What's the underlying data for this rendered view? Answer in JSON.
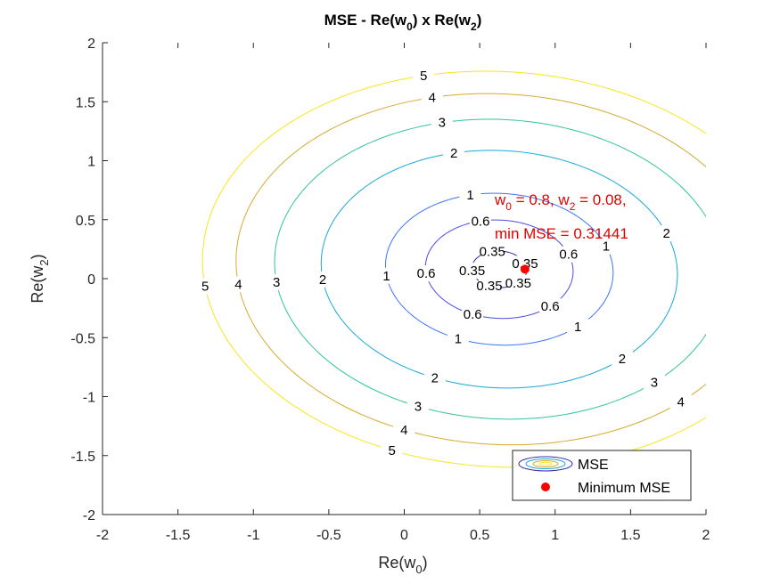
{
  "chart_data": {
    "type": "contour",
    "title_parts": {
      "prefix": "MSE - Re(w",
      "sub1": "0",
      "mid": ") x Re(w",
      "sub2": "2",
      "suffix": ")"
    },
    "xlabel_parts": {
      "prefix": "Re(w",
      "sub": "0",
      "suffix": ")"
    },
    "ylabel_parts": {
      "prefix": "Re(w",
      "sub": "2",
      "suffix": ")"
    },
    "xlim": [
      -2,
      2
    ],
    "ylim": [
      -2,
      2
    ],
    "xticks": [
      -2,
      -1.5,
      -1,
      -0.5,
      0,
      0.5,
      1,
      1.5,
      2
    ],
    "yticks": [
      -2,
      -1.5,
      -1,
      -0.5,
      0,
      0.5,
      1,
      1.5,
      2
    ],
    "xtick_labels": [
      "-2",
      "-1.5",
      "-1",
      "-0.5",
      "0",
      "0.5",
      "1",
      "1.5",
      "2"
    ],
    "ytick_labels": [
      "-2",
      "-1.5",
      "-1",
      "-0.5",
      "0",
      "0.5",
      "1",
      "1.5",
      "2"
    ],
    "grid": false,
    "levels": [
      {
        "value": 0.35,
        "label": "0.35",
        "color": "#3e26a8"
      },
      {
        "value": 0.6,
        "label": "0.6",
        "color": "#4a4be6"
      },
      {
        "value": 1,
        "label": "1",
        "color": "#3d74f9"
      },
      {
        "value": 2,
        "label": "2",
        "color": "#17a8d9"
      },
      {
        "value": 3,
        "label": "3",
        "color": "#31c49a"
      },
      {
        "value": 4,
        "label": "4",
        "color": "#d6a930"
      },
      {
        "value": 5,
        "label": "5",
        "color": "#f9e51c"
      }
    ],
    "minimum": {
      "x": 0.8,
      "y": 0.08,
      "value": 0.31441,
      "color": "#ff0000"
    },
    "annotation": {
      "line1_parts": [
        "w",
        "0",
        " = 0.8, w",
        "2",
        " = 0.08,"
      ],
      "line2": "min MSE = 0.31441",
      "color": "#e00000"
    },
    "legend": {
      "location": "bottom-right",
      "entries": [
        {
          "label": "MSE",
          "marker": "contour"
        },
        {
          "label": "Minimum MSE",
          "marker": "dot",
          "color": "#ff0000"
        }
      ]
    }
  }
}
